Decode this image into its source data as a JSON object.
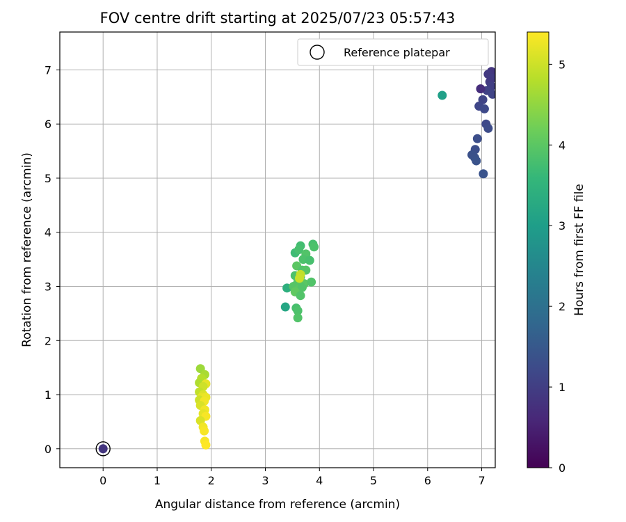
{
  "chart_data": {
    "type": "scatter",
    "title": "FOV centre drift starting at 2025/07/23 05:57:43",
    "xlabel": "Angular distance from reference (arcmin)",
    "ylabel": "Rotation from reference (arcmin)",
    "xlim": [
      -0.8,
      7.25
    ],
    "ylim": [
      -0.35,
      7.7
    ],
    "xticks": [
      0,
      1,
      2,
      3,
      4,
      5,
      6,
      7
    ],
    "yticks": [
      0,
      1,
      2,
      3,
      4,
      5,
      6,
      7
    ],
    "grid": true,
    "legend": {
      "placement": "top-right",
      "entries": [
        "Reference platepar"
      ]
    },
    "reference_point": {
      "x": 0,
      "y": 0,
      "hours": 0.85
    },
    "colorbar": {
      "label": "Hours from first FF file",
      "min": 0,
      "max": 5.4,
      "ticks": [
        0,
        1,
        2,
        3,
        4,
        5
      ],
      "colormap": [
        "#440154",
        "#482878",
        "#3e4989",
        "#31688e",
        "#26828e",
        "#1f9e89",
        "#35b779",
        "#6ece58",
        "#b5de2b",
        "#fde725"
      ]
    },
    "series": [
      {
        "points": [
          {
            "x": 7.18,
            "y": 6.97,
            "hours": 0.85
          },
          {
            "x": 7.12,
            "y": 6.92,
            "hours": 0.9
          },
          {
            "x": 7.2,
            "y": 6.85,
            "hours": 0.95
          },
          {
            "x": 7.15,
            "y": 6.78,
            "hours": 0.9
          },
          {
            "x": 7.18,
            "y": 6.7,
            "hours": 1.0
          },
          {
            "x": 7.1,
            "y": 6.62,
            "hours": 1.05
          },
          {
            "x": 7.2,
            "y": 6.55,
            "hours": 1.1
          },
          {
            "x": 6.98,
            "y": 6.65,
            "hours": 0.7
          },
          {
            "x": 7.02,
            "y": 6.45,
            "hours": 1.1
          },
          {
            "x": 6.95,
            "y": 6.33,
            "hours": 1.15
          },
          {
            "x": 7.05,
            "y": 6.28,
            "hours": 1.2
          },
          {
            "x": 7.08,
            "y": 6.0,
            "hours": 1.2
          },
          {
            "x": 7.12,
            "y": 5.92,
            "hours": 1.25
          },
          {
            "x": 6.92,
            "y": 5.73,
            "hours": 1.3
          },
          {
            "x": 6.88,
            "y": 5.53,
            "hours": 1.3
          },
          {
            "x": 6.82,
            "y": 5.43,
            "hours": 1.35
          },
          {
            "x": 6.87,
            "y": 5.38,
            "hours": 1.35
          },
          {
            "x": 6.9,
            "y": 5.32,
            "hours": 1.4
          },
          {
            "x": 7.03,
            "y": 5.08,
            "hours": 1.4
          },
          {
            "x": 6.27,
            "y": 6.53,
            "hours": 3.05
          },
          {
            "x": 3.37,
            "y": 2.62,
            "hours": 3.2
          },
          {
            "x": 3.4,
            "y": 2.97,
            "hours": 3.4
          },
          {
            "x": 3.55,
            "y": 3.62,
            "hours": 3.7
          },
          {
            "x": 3.65,
            "y": 3.75,
            "hours": 3.75
          },
          {
            "x": 3.62,
            "y": 3.68,
            "hours": 3.8
          },
          {
            "x": 3.88,
            "y": 3.78,
            "hours": 3.8
          },
          {
            "x": 3.9,
            "y": 3.73,
            "hours": 3.85
          },
          {
            "x": 3.75,
            "y": 3.6,
            "hours": 3.9
          },
          {
            "x": 3.7,
            "y": 3.5,
            "hours": 3.85
          },
          {
            "x": 3.82,
            "y": 3.48,
            "hours": 3.8
          },
          {
            "x": 3.58,
            "y": 3.38,
            "hours": 4.0
          },
          {
            "x": 3.68,
            "y": 3.3,
            "hours": 3.9
          },
          {
            "x": 3.75,
            "y": 3.3,
            "hours": 3.95
          },
          {
            "x": 3.55,
            "y": 3.2,
            "hours": 3.85
          },
          {
            "x": 3.65,
            "y": 3.18,
            "hours": 3.9
          },
          {
            "x": 3.6,
            "y": 3.08,
            "hours": 3.95
          },
          {
            "x": 3.72,
            "y": 3.05,
            "hours": 4.0
          },
          {
            "x": 3.85,
            "y": 3.08,
            "hours": 3.9
          },
          {
            "x": 3.52,
            "y": 3.0,
            "hours": 3.95
          },
          {
            "x": 3.62,
            "y": 2.95,
            "hours": 4.0
          },
          {
            "x": 3.68,
            "y": 2.98,
            "hours": 3.9
          },
          {
            "x": 3.55,
            "y": 2.9,
            "hours": 4.05
          },
          {
            "x": 3.65,
            "y": 2.83,
            "hours": 3.9
          },
          {
            "x": 3.57,
            "y": 2.6,
            "hours": 3.8
          },
          {
            "x": 3.6,
            "y": 2.55,
            "hours": 3.85
          },
          {
            "x": 3.6,
            "y": 2.42,
            "hours": 3.9
          },
          {
            "x": 3.65,
            "y": 3.22,
            "hours": 4.9
          },
          {
            "x": 3.63,
            "y": 3.15,
            "hours": 4.95
          },
          {
            "x": 1.8,
            "y": 1.48,
            "hours": 4.6
          },
          {
            "x": 1.88,
            "y": 1.37,
            "hours": 4.7
          },
          {
            "x": 1.82,
            "y": 1.3,
            "hours": 4.8
          },
          {
            "x": 1.78,
            "y": 1.22,
            "hours": 4.75
          },
          {
            "x": 1.9,
            "y": 1.2,
            "hours": 5.2
          },
          {
            "x": 1.85,
            "y": 1.15,
            "hours": 5.0
          },
          {
            "x": 1.78,
            "y": 1.05,
            "hours": 4.9
          },
          {
            "x": 1.85,
            "y": 1.0,
            "hours": 5.1
          },
          {
            "x": 1.82,
            "y": 0.95,
            "hours": 5.2
          },
          {
            "x": 1.9,
            "y": 0.95,
            "hours": 5.25
          },
          {
            "x": 1.78,
            "y": 0.9,
            "hours": 5.0
          },
          {
            "x": 1.87,
            "y": 0.88,
            "hours": 5.3
          },
          {
            "x": 1.8,
            "y": 0.8,
            "hours": 5.1
          },
          {
            "x": 1.88,
            "y": 0.72,
            "hours": 5.3
          },
          {
            "x": 1.85,
            "y": 0.65,
            "hours": 5.2
          },
          {
            "x": 1.9,
            "y": 0.6,
            "hours": 5.35
          },
          {
            "x": 1.8,
            "y": 0.52,
            "hours": 5.1
          },
          {
            "x": 1.85,
            "y": 0.4,
            "hours": 5.3
          },
          {
            "x": 1.87,
            "y": 0.33,
            "hours": 5.35
          },
          {
            "x": 1.88,
            "y": 0.14,
            "hours": 5.35
          },
          {
            "x": 1.9,
            "y": 0.07,
            "hours": 5.4
          }
        ]
      }
    ]
  }
}
